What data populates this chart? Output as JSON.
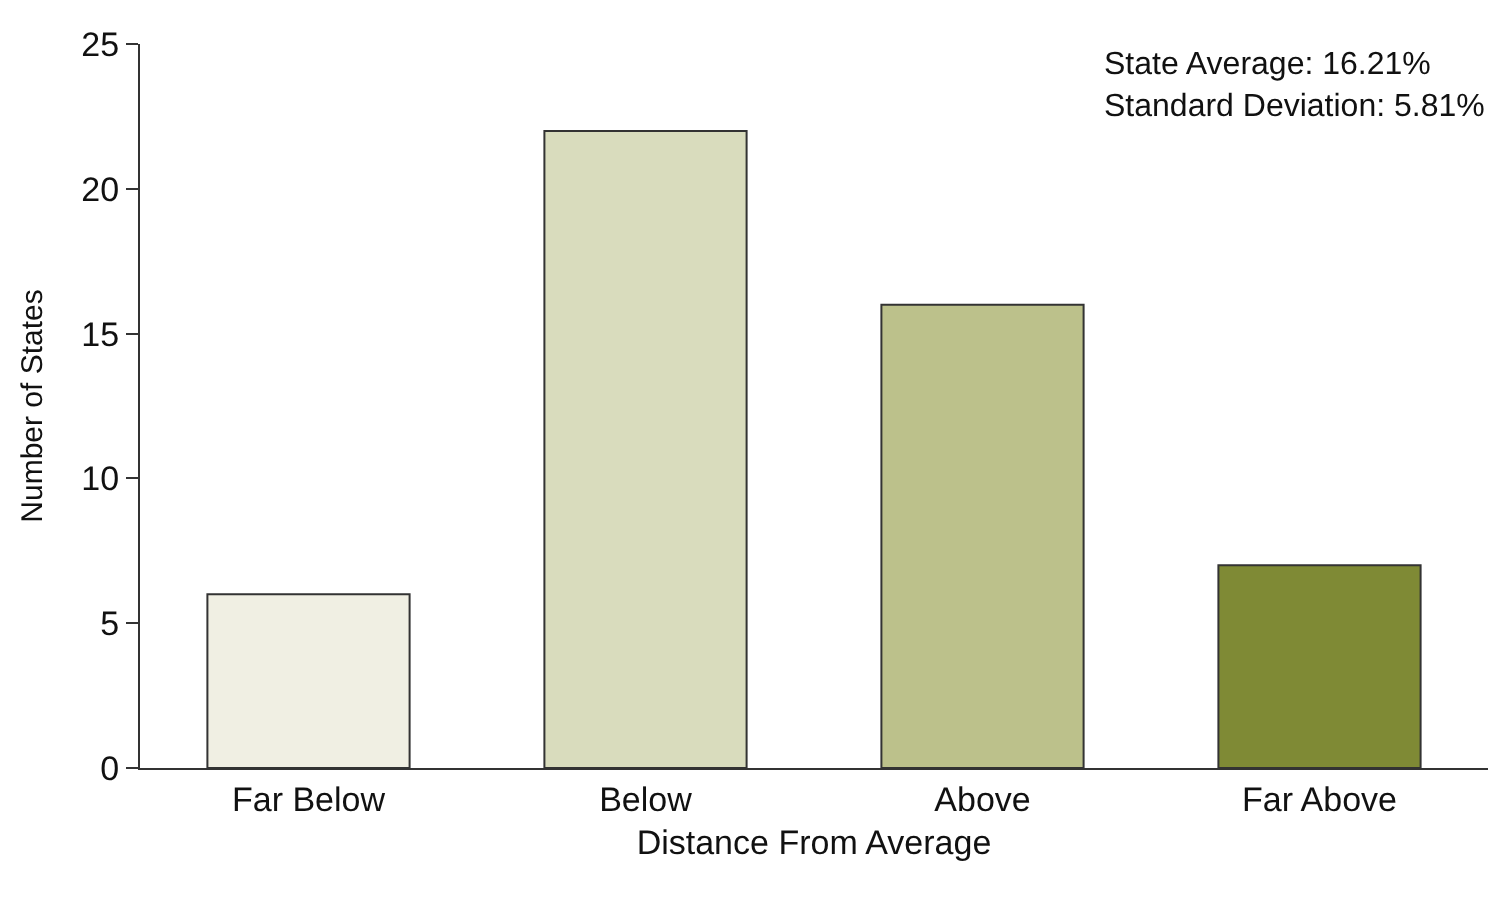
{
  "chart_data": {
    "type": "bar",
    "xlabel": "Distance From Average",
    "ylabel": "Number of States",
    "categories": [
      "Far Below",
      "Below",
      "Above",
      "Far Above"
    ],
    "values": [
      6,
      22,
      16,
      7
    ],
    "colors": [
      "#f0efe3",
      "#d9dcbd",
      "#bcc18b",
      "#7f8a35"
    ],
    "ylim": [
      0,
      25
    ],
    "yticks": [
      0,
      5,
      10,
      15,
      20,
      25
    ],
    "annotations": [
      "State Average: 16.21%\nStandard Deviation: 5.81%"
    ]
  }
}
